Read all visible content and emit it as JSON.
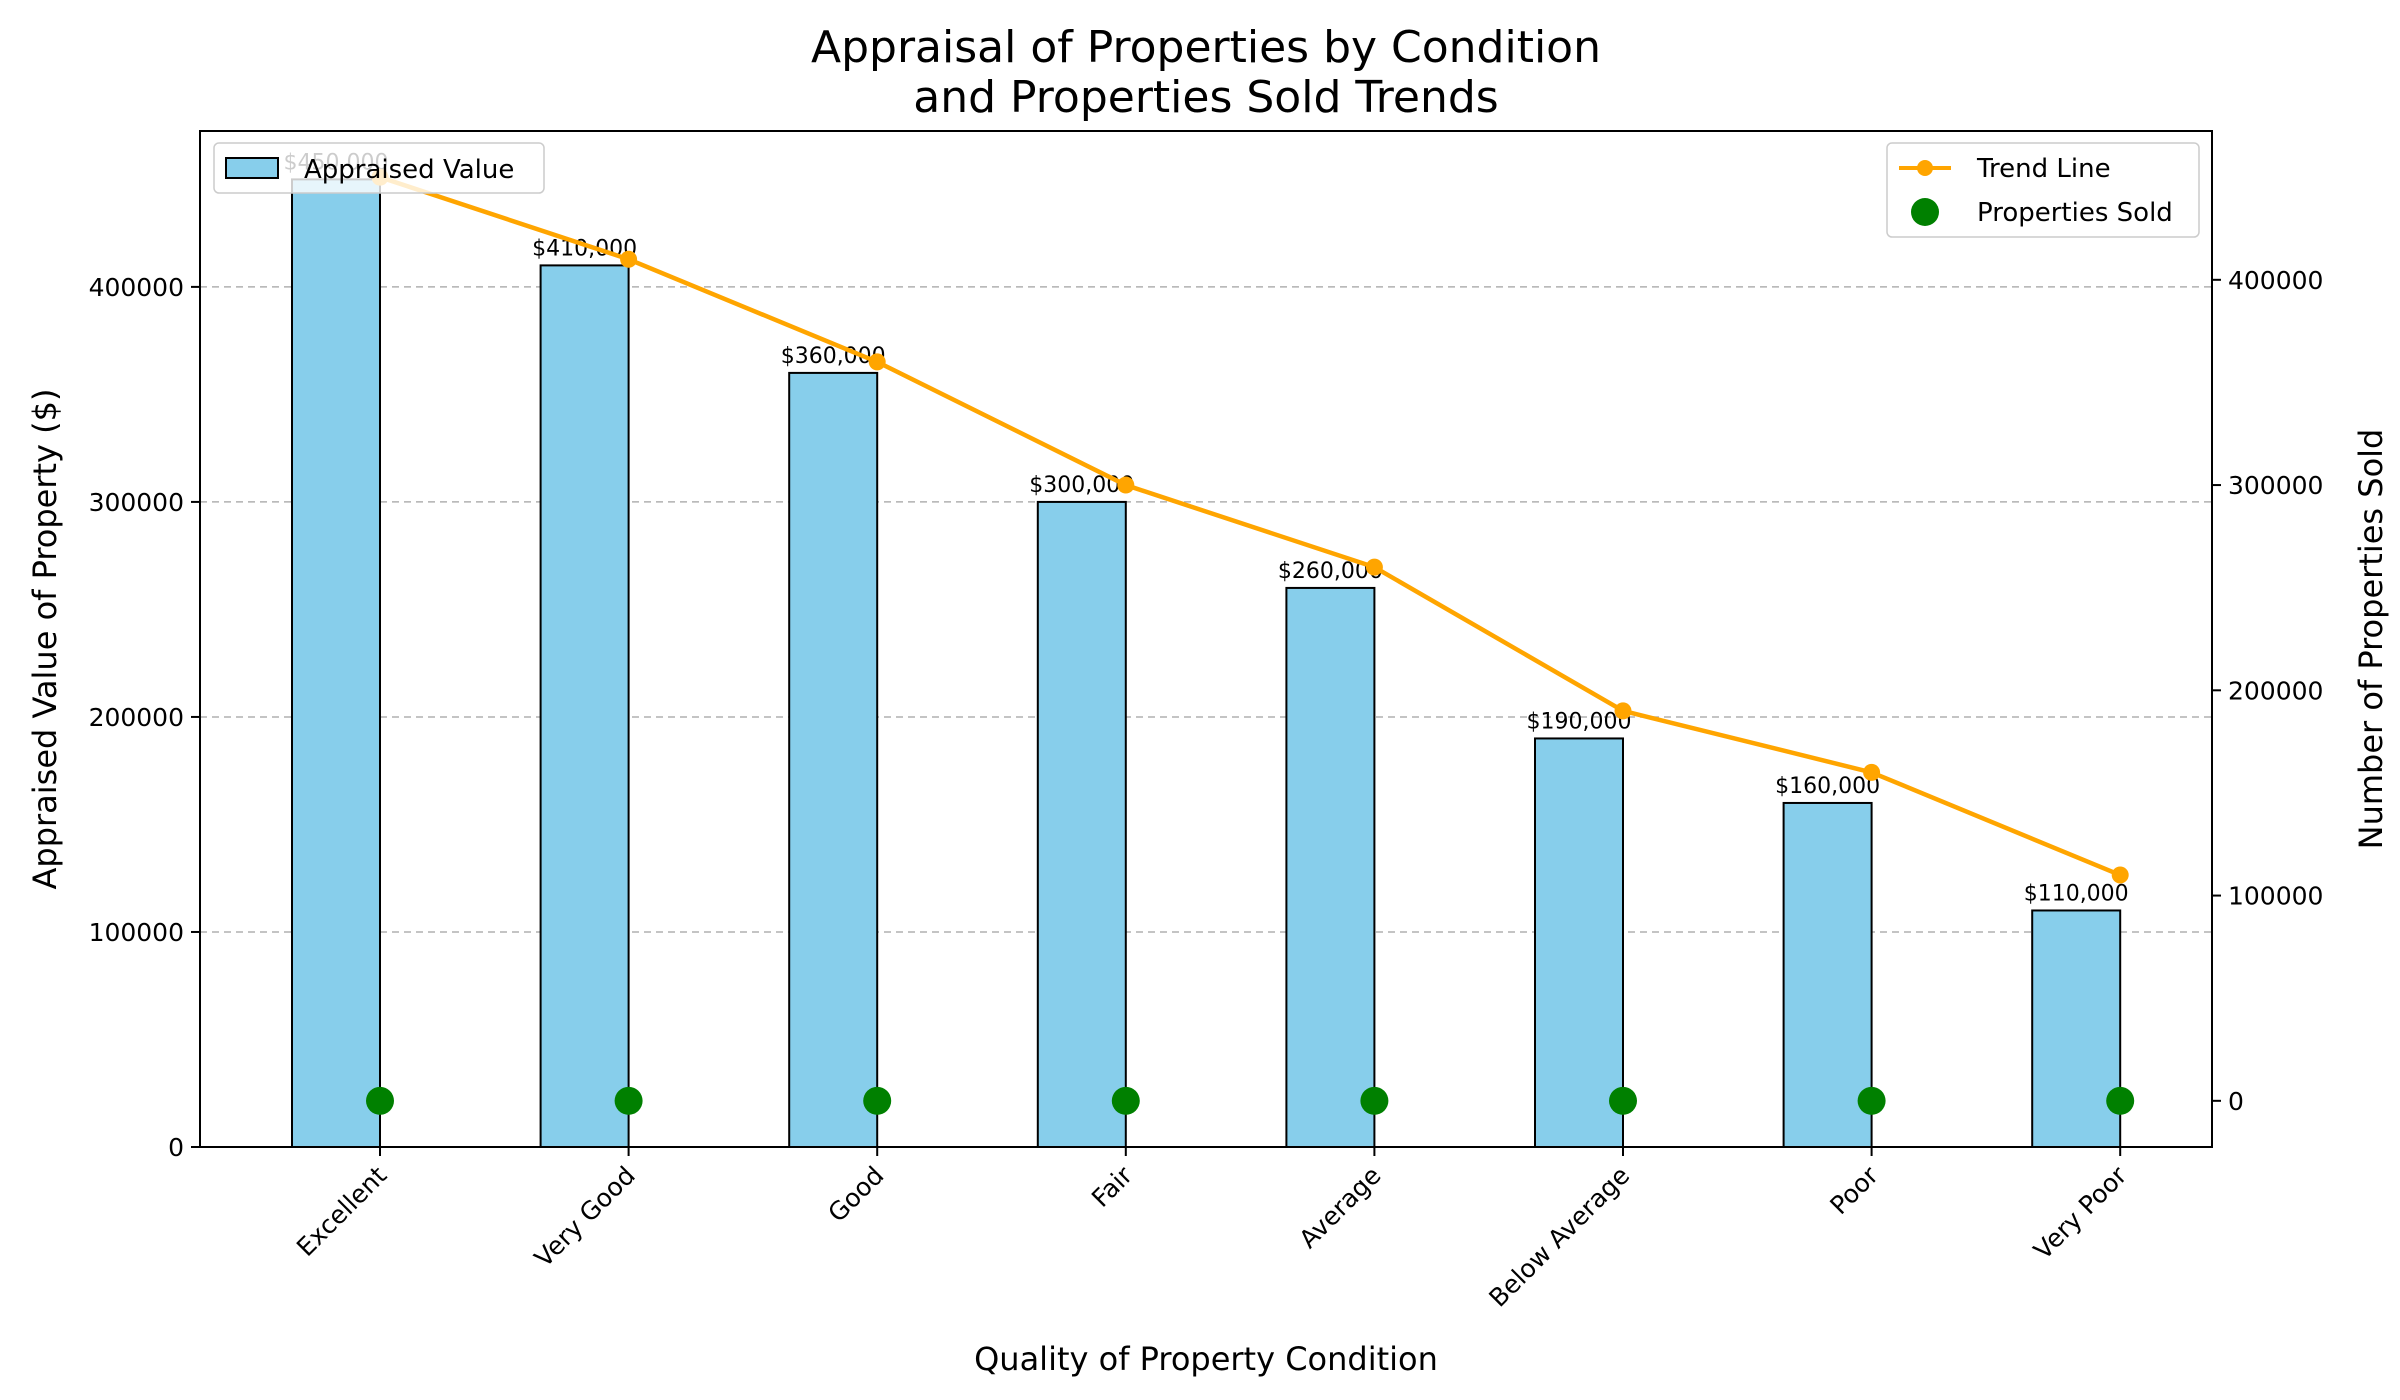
{
  "chart_data": {
    "type": "bar",
    "title_lines": [
      "Appraisal of Properties by Condition",
      "and Properties Sold Trends"
    ],
    "xlabel": "Quality of Property Condition",
    "ylabel": "Appraised Value of Property ($)",
    "y2label": "Number of Properties Sold",
    "categories": [
      "Excellent",
      "Very Good",
      "Good",
      "Fair",
      "Average",
      "Below Average",
      "Poor",
      "Very Poor"
    ],
    "series": [
      {
        "name": "Appraised Value",
        "kind": "bar",
        "axis": "left",
        "values": [
          450000,
          410000,
          360000,
          300000,
          260000,
          190000,
          160000,
          110000
        ],
        "labels": [
          "$450,000",
          "$410,000",
          "$360,000",
          "$300,000",
          "$260,000",
          "$190,000",
          "$160,000",
          "$110,000"
        ]
      },
      {
        "name": "Trend Line",
        "kind": "line",
        "axis": "right",
        "values": [
          450000,
          410000,
          360000,
          300000,
          260000,
          190000,
          160000,
          110000
        ]
      },
      {
        "name": "Properties Sold",
        "kind": "scatter",
        "axis": "right",
        "values": [
          0,
          0,
          0,
          0,
          0,
          0,
          0,
          0
        ]
      }
    ],
    "ylim": [
      0,
      472500
    ],
    "y_ticks": [
      0,
      100000,
      200000,
      300000,
      400000
    ],
    "y2lim": [
      -22500,
      472500
    ],
    "y2_ticks": [
      0,
      100000,
      200000,
      300000,
      400000
    ],
    "grid": "horizontal dashed",
    "legend_left": "top-left",
    "legend_right": "top-right",
    "colors": {
      "bar_fill": "#87CEEB",
      "bar_edge": "#000000",
      "trend": "#FFA500",
      "sold": "#008000",
      "grid": "#b0b0b0"
    }
  }
}
